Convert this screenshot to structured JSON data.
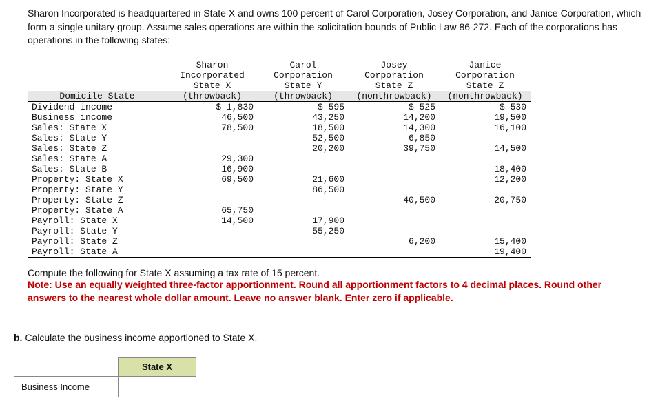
{
  "intro": "Sharon Incorporated is headquartered in State X and owns 100 percent of Carol Corporation, Josey Corporation, and Janice Corporation, which form a single unitary group. Assume sales operations are within the solicitation bounds of Public Law 86-272. Each of the corporations has operations in the following states:",
  "columns": [
    {
      "name": "Sharon",
      "entity": "Incorporated",
      "state": "State X",
      "rule": "(throwback)"
    },
    {
      "name": "Carol",
      "entity": "Corporation",
      "state": "State Y",
      "rule": "(throwback)"
    },
    {
      "name": "Josey",
      "entity": "Corporation",
      "state": "State Z",
      "rule": "(nonthrowback)"
    },
    {
      "name": "Janice",
      "entity": "Corporation",
      "state": "State Z",
      "rule": "(nonthrowback)"
    }
  ],
  "rowlabel_header": "Domicile State",
  "rows": [
    {
      "label": "Dividend income",
      "v": [
        "$ 1,830",
        "$ 595",
        "$ 525",
        "$ 530"
      ]
    },
    {
      "label": "Business income",
      "v": [
        "46,500",
        "43,250",
        "14,200",
        "19,500"
      ]
    },
    {
      "label": "Sales: State X",
      "v": [
        "78,500",
        "18,500",
        "14,300",
        "16,100"
      ]
    },
    {
      "label": "Sales: State Y",
      "v": [
        "",
        "52,500",
        "6,850",
        ""
      ]
    },
    {
      "label": "Sales: State Z",
      "v": [
        "",
        "20,200",
        "39,750",
        "14,500"
      ]
    },
    {
      "label": "Sales: State A",
      "v": [
        "29,300",
        "",
        "",
        ""
      ]
    },
    {
      "label": "Sales: State B",
      "v": [
        "16,900",
        "",
        "",
        "18,400"
      ]
    },
    {
      "label": "Property: State X",
      "v": [
        "69,500",
        "21,600",
        "",
        "12,200"
      ]
    },
    {
      "label": "Property: State Y",
      "v": [
        "",
        "86,500",
        "",
        ""
      ]
    },
    {
      "label": "Property: State Z",
      "v": [
        "",
        "",
        "40,500",
        "20,750"
      ]
    },
    {
      "label": "Property: State A",
      "v": [
        "65,750",
        "",
        "",
        ""
      ]
    },
    {
      "label": "Payroll: State X",
      "v": [
        "14,500",
        "17,900",
        "",
        ""
      ]
    },
    {
      "label": "Payroll: State Y",
      "v": [
        "",
        "55,250",
        "",
        ""
      ]
    },
    {
      "label": "Payroll: State Z",
      "v": [
        "",
        "",
        "6,200",
        "15,400"
      ]
    },
    {
      "label": "Payroll: State A",
      "v": [
        "",
        "",
        "",
        "19,400"
      ]
    }
  ],
  "compute_text": "Compute the following for State X assuming a tax rate of 15 percent.",
  "note_text": "Note: Use an equally weighted three-factor apportionment. Round all apportionment factors to 4 decimal places. Round other answers to the nearest whole dollar amount. Leave no answer blank. Enter zero if applicable.",
  "partb_label": "b.",
  "partb_text": "Calculate the business income apportioned to State X.",
  "answer_col_header": "State X",
  "answer_row_label": "Business Income"
}
